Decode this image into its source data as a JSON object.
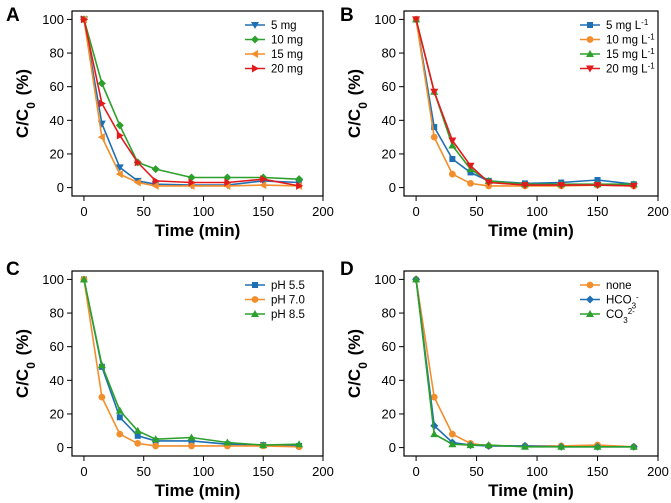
{
  "chart_data": [
    {
      "panel": "A",
      "type": "line",
      "xlabel": "Time (min)",
      "ylabel": "C/C0 (%)",
      "xlim": [
        -10,
        200
      ],
      "ylim": [
        -5,
        105
      ],
      "xticks": [
        0,
        50,
        100,
        150,
        200
      ],
      "yticks": [
        0,
        20,
        40,
        60,
        80,
        100
      ],
      "legend_position": "top-right",
      "series": [
        {
          "name": "5 mg",
          "color": "#1f6fb4",
          "marker": "triangle-down",
          "x": [
            0,
            15,
            30,
            45,
            60,
            90,
            120,
            150,
            180
          ],
          "y": [
            100,
            38,
            12,
            4,
            2,
            1.5,
            1.5,
            4,
            3
          ]
        },
        {
          "name": "10 mg",
          "color": "#2ca02c",
          "marker": "diamond",
          "x": [
            0,
            15,
            30,
            45,
            60,
            90,
            120,
            150,
            180
          ],
          "y": [
            100,
            62,
            37,
            15,
            11,
            6,
            6,
            6,
            5
          ]
        },
        {
          "name": "15 mg",
          "color": "#f28e2b",
          "marker": "triangle-left",
          "x": [
            0,
            15,
            30,
            45,
            60,
            90,
            120,
            150,
            180
          ],
          "y": [
            100,
            30,
            8,
            3,
            1,
            1,
            1,
            1.5,
            1
          ]
        },
        {
          "name": "20 mg",
          "color": "#e31a1c",
          "marker": "triangle-right",
          "x": [
            0,
            15,
            30,
            45,
            60,
            90,
            120,
            150,
            180
          ],
          "y": [
            100,
            50,
            31,
            15,
            4,
            3,
            3,
            5,
            1
          ]
        }
      ]
    },
    {
      "panel": "B",
      "type": "line",
      "xlabel": "Time (min)",
      "ylabel": "C/C0 (%)",
      "xlim": [
        -10,
        200
      ],
      "ylim": [
        -5,
        105
      ],
      "xticks": [
        0,
        50,
        100,
        150,
        200
      ],
      "yticks": [
        0,
        20,
        40,
        60,
        80,
        100
      ],
      "legend_position": "top-right",
      "series": [
        {
          "name": "5 mg L",
          "sup": "-1",
          "color": "#1f6fb4",
          "marker": "square",
          "x": [
            0,
            15,
            30,
            45,
            60,
            90,
            120,
            150,
            180
          ],
          "y": [
            100,
            36,
            17,
            9,
            4,
            2.5,
            3,
            4.5,
            2
          ]
        },
        {
          "name": "10 mg L",
          "sup": "-1",
          "color": "#f28e2b",
          "marker": "circle",
          "x": [
            0,
            15,
            30,
            45,
            60,
            90,
            120,
            150,
            180
          ],
          "y": [
            100,
            30,
            8,
            2.5,
            1,
            1,
            1,
            1.5,
            1
          ]
        },
        {
          "name": "15 mg L",
          "sup": "-1",
          "color": "#2ca02c",
          "marker": "triangle",
          "x": [
            0,
            15,
            30,
            45,
            60,
            90,
            120,
            150,
            180
          ],
          "y": [
            100,
            57,
            25,
            11,
            4,
            2,
            2,
            2,
            2
          ]
        },
        {
          "name": "20 mg L",
          "sup": "-1",
          "color": "#e31a1c",
          "marker": "triangle-down",
          "x": [
            0,
            15,
            30,
            45,
            60,
            90,
            120,
            150,
            180
          ],
          "y": [
            100,
            57,
            28,
            13,
            3,
            1.5,
            1.5,
            1.5,
            1
          ]
        }
      ]
    },
    {
      "panel": "C",
      "type": "line",
      "xlabel": "Time (min)",
      "ylabel": "C/C0 (%)",
      "xlim": [
        -10,
        200
      ],
      "ylim": [
        -5,
        105
      ],
      "xticks": [
        0,
        50,
        100,
        150,
        200
      ],
      "yticks": [
        0,
        20,
        40,
        60,
        80,
        100
      ],
      "legend_position": "top-right",
      "series": [
        {
          "name": "pH 5.5",
          "color": "#1f6fb4",
          "marker": "square",
          "x": [
            0,
            15,
            30,
            45,
            60,
            90,
            120,
            150,
            180
          ],
          "y": [
            100,
            48,
            18,
            7,
            4,
            4,
            2,
            1.5,
            1
          ]
        },
        {
          "name": "pH 7.0",
          "color": "#f28e2b",
          "marker": "circle",
          "x": [
            0,
            15,
            30,
            45,
            60,
            90,
            120,
            150,
            180
          ],
          "y": [
            100,
            30,
            8,
            2.5,
            1,
            1,
            1,
            1,
            0.5
          ]
        },
        {
          "name": "pH 8.5",
          "color": "#2ca02c",
          "marker": "triangle",
          "x": [
            0,
            15,
            30,
            45,
            60,
            90,
            120,
            150,
            180
          ],
          "y": [
            100,
            49,
            22,
            10,
            5,
            6,
            3,
            1.5,
            2
          ]
        }
      ]
    },
    {
      "panel": "D",
      "type": "line",
      "xlabel": "Time (min)",
      "ylabel": "C/C0 (%)",
      "xlim": [
        -10,
        200
      ],
      "ylim": [
        -5,
        105
      ],
      "xticks": [
        0,
        50,
        100,
        150,
        200
      ],
      "yticks": [
        0,
        20,
        40,
        60,
        80,
        100
      ],
      "legend_position": "top-right",
      "series": [
        {
          "name": "none",
          "color": "#f28e2b",
          "marker": "circle",
          "x": [
            0,
            15,
            30,
            45,
            60,
            90,
            120,
            150,
            180
          ],
          "y": [
            100,
            30,
            8,
            2.5,
            1,
            1,
            1,
            1.5,
            0.5
          ]
        },
        {
          "name": "HCO",
          "sub": "3",
          "sup": "-",
          "color": "#1f6fb4",
          "marker": "diamond",
          "x": [
            0,
            15,
            30,
            45,
            60,
            90,
            120,
            150,
            180
          ],
          "y": [
            100,
            13,
            3,
            1.5,
            1,
            1,
            0.5,
            0.5,
            0.5
          ]
        },
        {
          "name": "CO",
          "sub": "3",
          "sup": "2-",
          "color": "#2ca02c",
          "marker": "triangle",
          "x": [
            0,
            15,
            30,
            45,
            60,
            90,
            120,
            150,
            180
          ],
          "y": [
            100,
            8,
            2,
            1.5,
            1.5,
            0.5,
            0.5,
            0.5,
            0.5
          ]
        }
      ]
    }
  ]
}
